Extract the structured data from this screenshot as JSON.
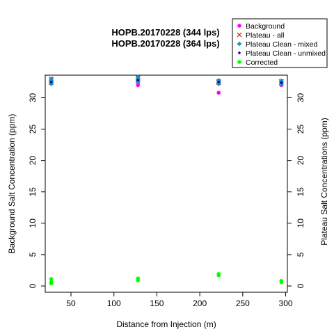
{
  "chart_data": {
    "type": "scatter",
    "title_lines": [
      "HOPB.20170228 (344 lps)",
      "HOPB.20170228 (364 lps)"
    ],
    "xlabel": "Distance from Injection (m)",
    "ylabel": "Background Salt Concentration (ppm)",
    "y2label": "Plateau Salt Concentrations (ppm)",
    "xlim": [
      20,
      302
    ],
    "ylim": [
      -1,
      33.6
    ],
    "x_ticks": [
      50,
      100,
      150,
      200,
      250,
      300
    ],
    "y_ticks": [
      0,
      5,
      10,
      15,
      20,
      25,
      30
    ],
    "legend_position": "top-right",
    "series": [
      {
        "name": "Background",
        "color": "#ff00ff",
        "marker": "dot",
        "points": [
          [
            27,
            32.3
          ],
          [
            27,
            32.6
          ],
          [
            128,
            32.0
          ],
          [
            128,
            32.6
          ],
          [
            222,
            30.8
          ],
          [
            222,
            32.4
          ],
          [
            295,
            32.0
          ],
          [
            295,
            32.4
          ]
        ]
      },
      {
        "name": "Plateau - all",
        "color": "#ff0000",
        "marker": "x",
        "points": [
          [
            27,
            32.4
          ],
          [
            27,
            32.7
          ],
          [
            27,
            33.0
          ],
          [
            128,
            32.6
          ],
          [
            128,
            33.0
          ],
          [
            128,
            33.2
          ],
          [
            222,
            32.4
          ],
          [
            222,
            32.6
          ],
          [
            295,
            32.3
          ],
          [
            295,
            32.6
          ]
        ]
      },
      {
        "name": "Plateau Clean - mixed",
        "color": "#1e90c8",
        "marker": "diamond",
        "points": [
          [
            27,
            32.2
          ],
          [
            27,
            32.4
          ],
          [
            27,
            32.6
          ],
          [
            27,
            32.8
          ],
          [
            27,
            33.0
          ],
          [
            128,
            32.5
          ],
          [
            128,
            32.7
          ],
          [
            128,
            32.9
          ],
          [
            128,
            33.1
          ],
          [
            128,
            33.3
          ],
          [
            222,
            32.2
          ],
          [
            222,
            32.4
          ],
          [
            222,
            32.6
          ],
          [
            222,
            32.8
          ],
          [
            295,
            32.1
          ],
          [
            295,
            32.3
          ],
          [
            295,
            32.5
          ],
          [
            295,
            32.7
          ]
        ]
      },
      {
        "name": "Plateau Clean - unmixed",
        "color": "#00008b",
        "marker": "diamond-small",
        "points": [
          [
            27,
            32.5
          ],
          [
            128,
            32.8
          ],
          [
            222,
            32.5
          ],
          [
            295,
            32.4
          ]
        ]
      },
      {
        "name": "Corrected",
        "color": "#00ff00",
        "marker": "dot",
        "points": [
          [
            27,
            0.4
          ],
          [
            27,
            0.6
          ],
          [
            27,
            1.1
          ],
          [
            128,
            0.9
          ],
          [
            128,
            1.2
          ],
          [
            222,
            1.7
          ],
          [
            222,
            1.9
          ],
          [
            295,
            0.6
          ],
          [
            295,
            0.8
          ]
        ]
      }
    ]
  }
}
